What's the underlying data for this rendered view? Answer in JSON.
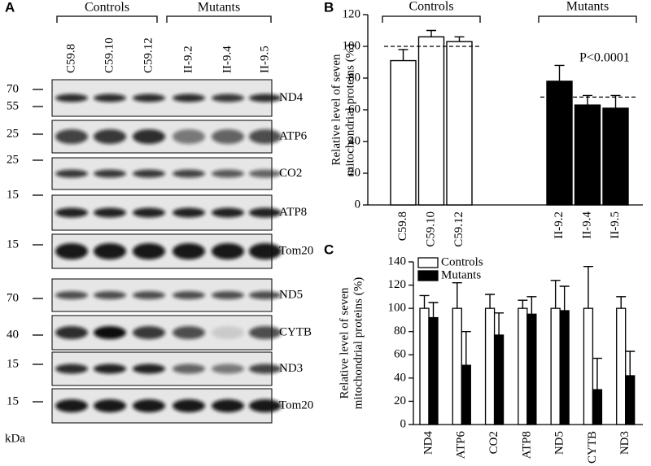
{
  "panel_labels": [
    "A",
    "B",
    "C"
  ],
  "blot": {
    "groups": [
      "Controls",
      "Mutants"
    ],
    "lanes": [
      "C59.8",
      "C59.10",
      "C59.12",
      "II-9.2",
      "II-9.4",
      "II-9.5"
    ],
    "rows": [
      "ND4",
      "ATP6",
      "CO2",
      "ATP8",
      "Tom20",
      "ND5",
      "CYTB",
      "ND3",
      "Tom20"
    ],
    "markers": [
      70,
      55,
      25,
      25,
      15,
      15,
      70,
      40,
      15,
      15
    ],
    "unit": "kDa"
  },
  "chart_data": [
    {
      "type": "bar",
      "ylabel": [
        "Relative level of seven",
        "mitochondrial proteins (%)"
      ],
      "ylim": [
        0,
        120
      ],
      "yticks": [
        0,
        20,
        40,
        60,
        80,
        100,
        120
      ],
      "annotation": "P<0.0001",
      "groups": [
        {
          "name": "Controls",
          "color": "#ffffff",
          "categories": [
            "C59.8",
            "C59.10",
            "C59.12"
          ],
          "values": [
            91,
            106,
            103
          ],
          "errors": [
            7,
            4,
            3
          ],
          "mean": 100
        },
        {
          "name": "Mutants",
          "color": "#000000",
          "categories": [
            "II-9.2",
            "II-9.4",
            "II-9.5"
          ],
          "values": [
            78,
            63,
            61
          ],
          "errors": [
            10,
            6,
            8
          ],
          "mean": 68
        }
      ]
    },
    {
      "type": "grouped_bar",
      "ylabel": [
        "Relative level of seven",
        "mitochondrial proteins (%)"
      ],
      "ylim": [
        0,
        140
      ],
      "yticks": [
        0,
        20,
        40,
        60,
        80,
        100,
        120,
        140
      ],
      "legend": "top-left",
      "categories": [
        "ND4",
        "ATP6",
        "CO2",
        "ATP8",
        "ND5",
        "CYTB",
        "ND3"
      ],
      "series": [
        {
          "name": "Controls",
          "color": "#ffffff",
          "values": [
            100,
            100,
            100,
            100,
            100,
            100,
            100
          ],
          "errors": [
            11,
            22,
            12,
            7,
            24,
            36,
            10
          ]
        },
        {
          "name": "Mutants",
          "color": "#000000",
          "values": [
            92,
            51,
            77,
            95,
            98,
            30,
            42
          ],
          "errors": [
            13,
            29,
            19,
            15,
            21,
            27,
            21
          ]
        }
      ]
    }
  ]
}
